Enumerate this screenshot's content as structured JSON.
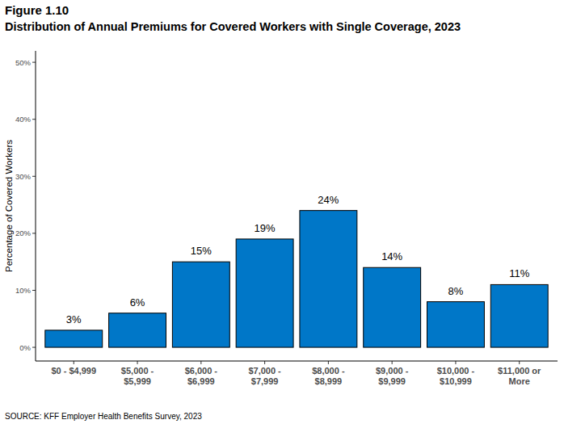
{
  "chart_data": {
    "type": "bar",
    "title": "Figure 1.10",
    "subtitle": "Distribution of Annual Premiums for Covered Workers with Single Coverage, 2023",
    "y_label": "Percentage of Covered Workers",
    "source": "SOURCE: KFF Employer Health Benefits Survey, 2023",
    "categories": [
      "$0 - $4,999",
      "$5,000 -\n$5,999",
      "$6,000 -\n$6,999",
      "$7,000 -\n$7,999",
      "$8,000 -\n$8,999",
      "$9,000 -\n$9,999",
      "$10,000 -\n$10,999",
      "$11,000 or\nMore"
    ],
    "values": [
      3,
      6,
      15,
      19,
      24,
      14,
      8,
      11
    ],
    "value_labels": [
      "3%",
      "6%",
      "15%",
      "19%",
      "24%",
      "14%",
      "8%",
      "11%"
    ],
    "data_labels": true,
    "color": "#0077c8",
    "ylim": [
      -2.4,
      52
    ],
    "yticks": [
      {
        "value": 0,
        "label": "0%"
      },
      {
        "value": 10,
        "label": "10%"
      },
      {
        "value": 20,
        "label": "20%"
      },
      {
        "value": 30,
        "label": "30%"
      },
      {
        "value": 40,
        "label": "40%"
      },
      {
        "value": 50,
        "label": "50%"
      }
    ],
    "grid": false
  }
}
